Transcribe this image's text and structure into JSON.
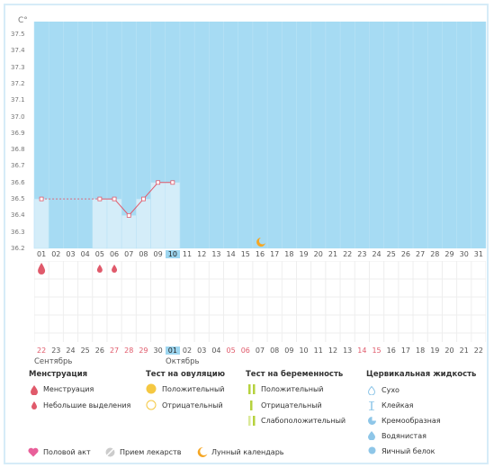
{
  "chart_data": {
    "type": "line",
    "y_unit": "C°",
    "ylim": [
      36.2,
      37.5
    ],
    "y_ticks": [
      "37.5",
      "37.4",
      "37.3",
      "37.2",
      "37.1",
      "37.0",
      "36.9",
      "36.8",
      "36.7",
      "36.6",
      "36.5",
      "36.4",
      "36.3",
      "36.2"
    ],
    "days_top": [
      "01",
      "02",
      "03",
      "04",
      "05",
      "06",
      "07",
      "08",
      "09",
      "10",
      "11",
      "12",
      "13",
      "14",
      "15",
      "16",
      "17",
      "18",
      "19",
      "20",
      "21",
      "22",
      "23",
      "24",
      "25",
      "26",
      "27",
      "28",
      "29",
      "30",
      "31"
    ],
    "today_index": 9,
    "series": [
      {
        "values": [
          36.5,
          null,
          null,
          null,
          36.5,
          36.5,
          36.4,
          36.5,
          36.6,
          36.6,
          null,
          null,
          null,
          null,
          null,
          null,
          null,
          null,
          null,
          null,
          null,
          null,
          null,
          null,
          null,
          null,
          null,
          null,
          null,
          null,
          null
        ]
      }
    ],
    "dashed_gap": [
      0,
      4
    ],
    "bars": [
      0,
      4,
      5,
      6,
      7,
      8,
      9
    ],
    "menstruation_big": [
      0
    ],
    "menstruation_small": [
      4,
      5
    ],
    "moon_index": 15,
    "cycle_dates": [
      "22",
      "23",
      "24",
      "25",
      "26",
      "27",
      "28",
      "29",
      "30",
      "01",
      "02",
      "03",
      "04",
      "05",
      "06",
      "07",
      "08",
      "09",
      "10",
      "11",
      "12",
      "13",
      "14",
      "15",
      "16",
      "17",
      "18",
      "19",
      "20",
      "21",
      "22"
    ],
    "cycle_red": [
      0,
      5,
      6,
      7,
      13,
      14,
      22,
      23
    ],
    "cycle_highlight": 9
  },
  "months": {
    "left": "Сентябрь",
    "right": "Октябрь"
  },
  "legend": {
    "menstruation": {
      "title": "Менструация",
      "items": [
        "Менструация",
        "Небольшие выделения"
      ]
    },
    "ovulation": {
      "title": "Тест на овуляцию",
      "items": [
        "Положительный",
        "Отрицательный"
      ]
    },
    "pregnancy": {
      "title": "Тест на беременность",
      "items": [
        "Положительный",
        "Отрицательный",
        "Слабоположительный"
      ]
    },
    "cervical": {
      "title": "Цервикальная жидкость",
      "items": [
        "Сухо",
        "Клейкая",
        "Кремообразная",
        "Водянистая",
        "Яичный белок"
      ]
    },
    "bottom": [
      "Половой акт",
      "Прием лекарств",
      "Лунный календарь"
    ]
  },
  "colors": {
    "bg_fill": "#a6dbf3",
    "bar": "#d4edf9",
    "line": "#e05a6b",
    "grid": "#eeeeee",
    "moon": "#f5a623",
    "drop": "#e05a6b",
    "heart": "#e8609a",
    "yellow": "#f5c842",
    "green": "#b6d23e",
    "drop_blue": "#8ec6e8"
  }
}
